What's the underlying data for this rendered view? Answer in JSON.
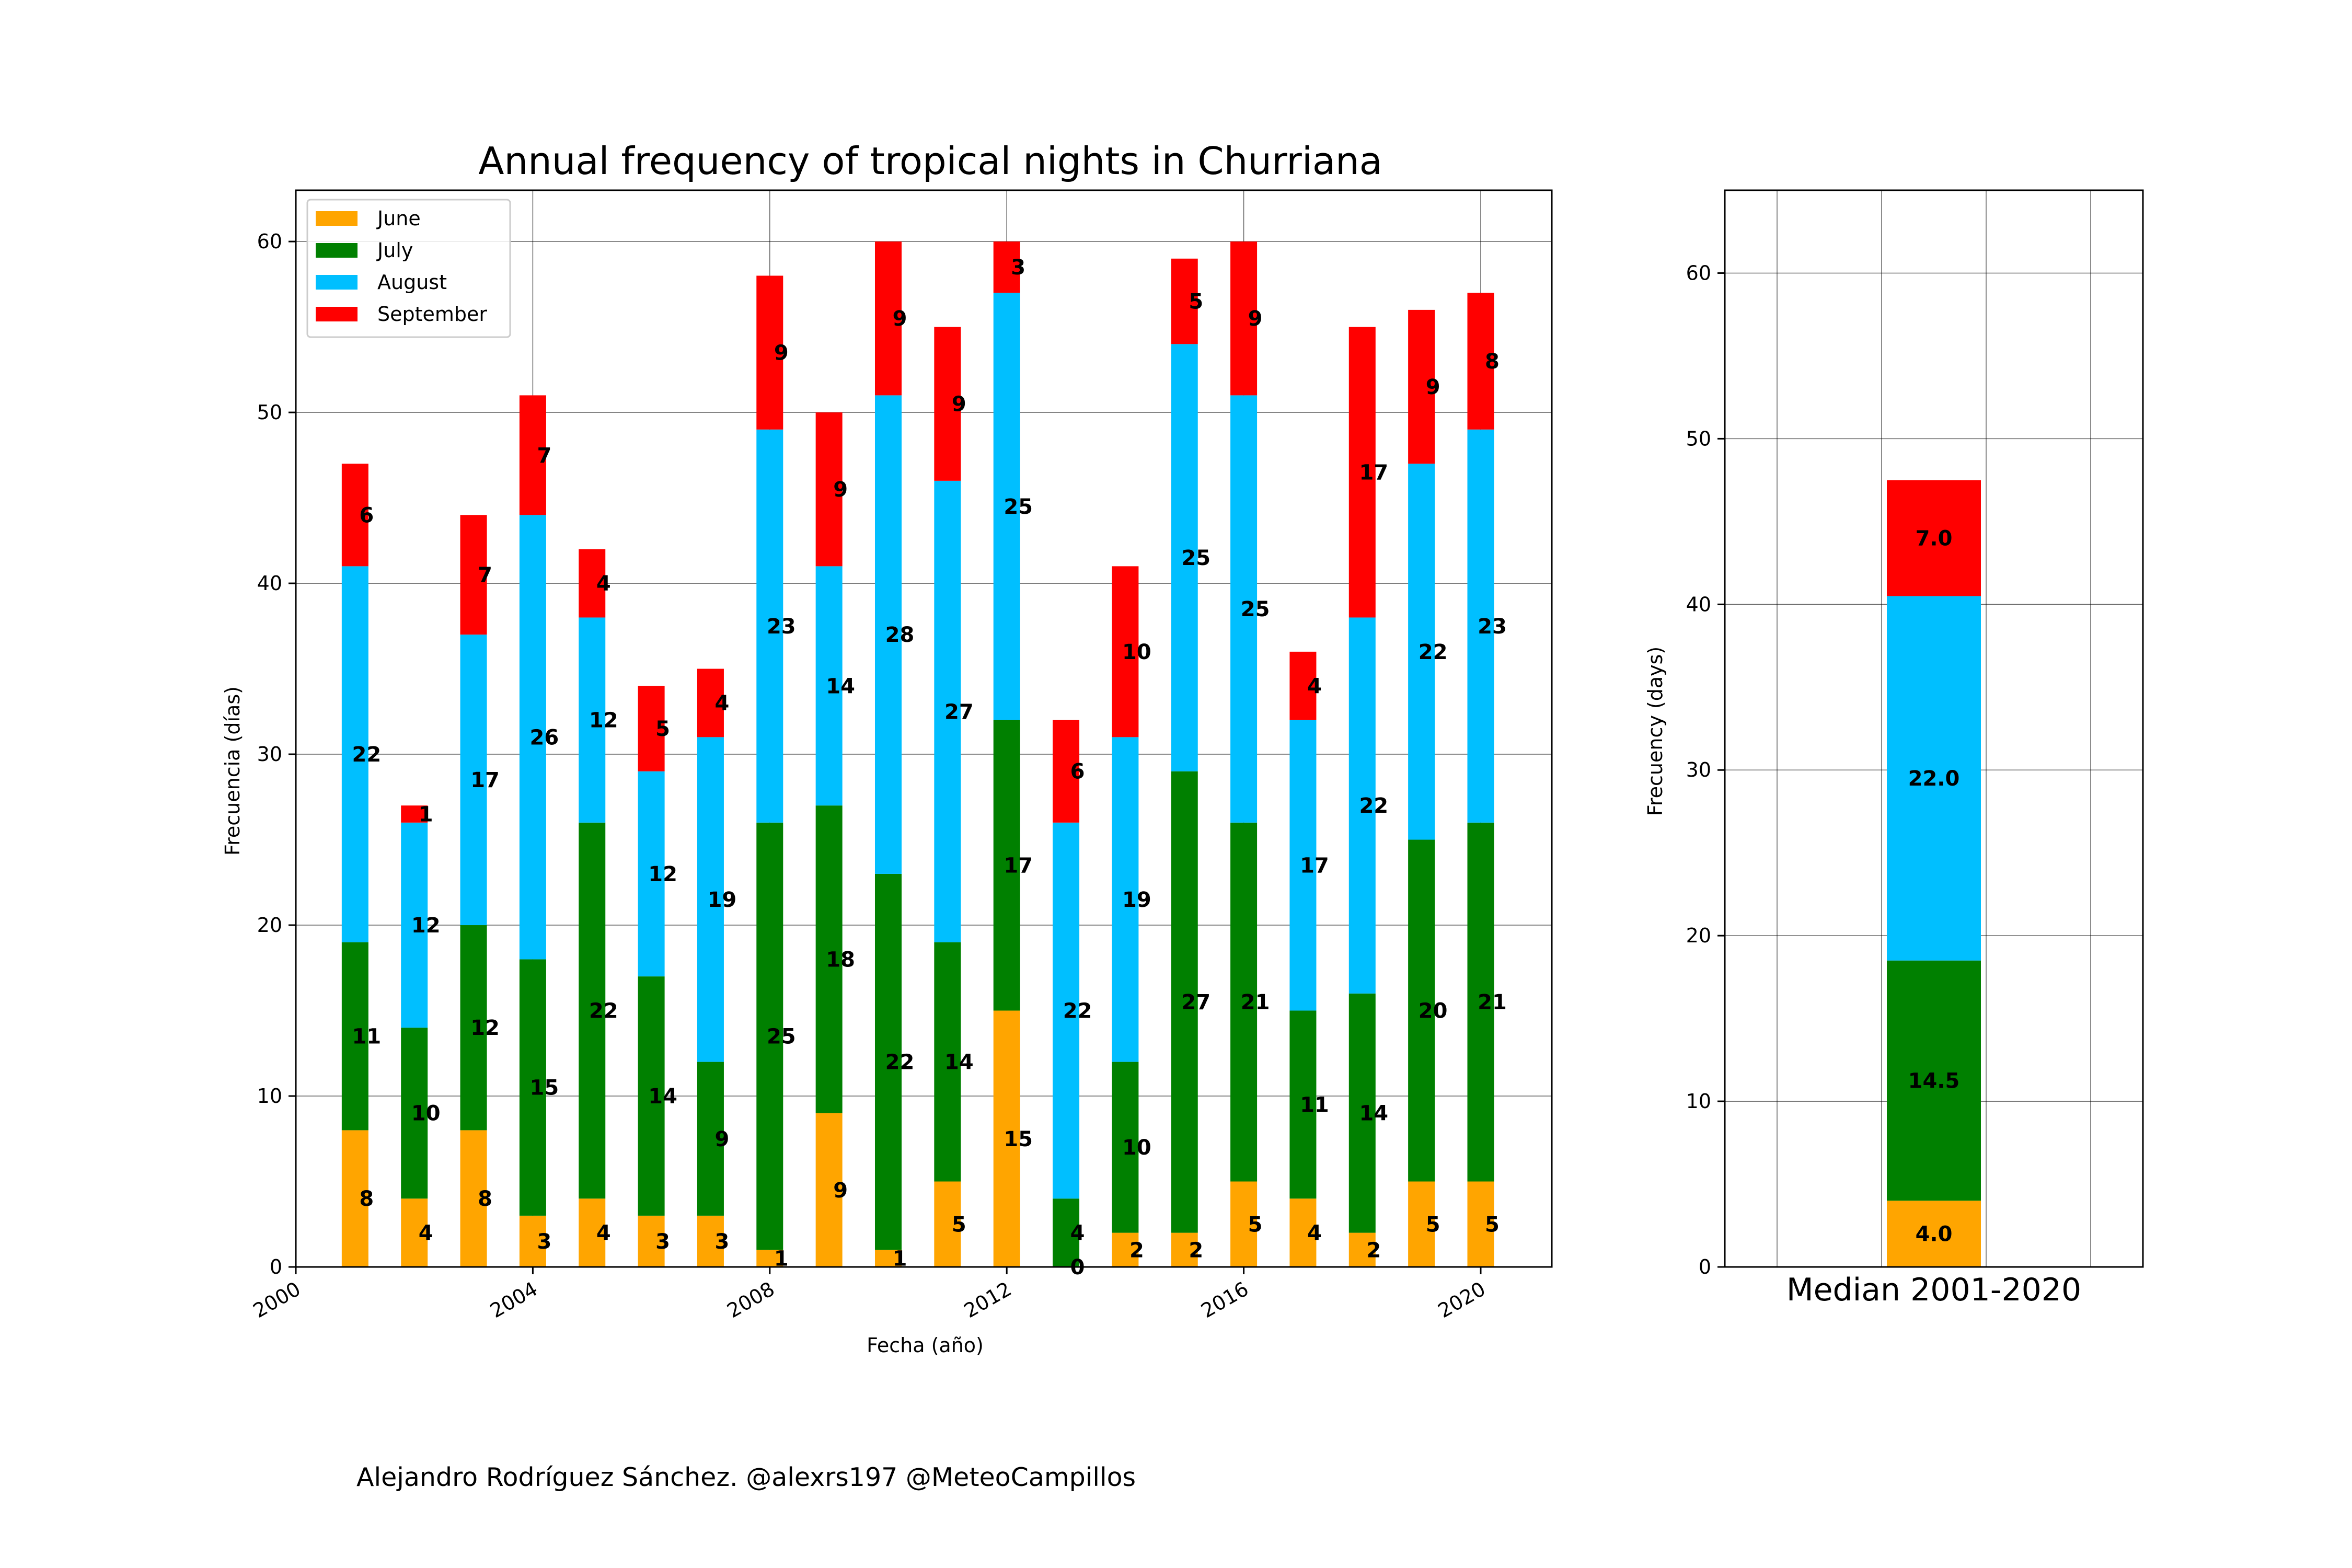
{
  "chart_data": [
    {
      "type": "bar",
      "stacked": true,
      "title": "Annual frequency of tropical nights in Churriana",
      "xlabel": "Fecha (año)",
      "ylabel": "Frecuencia (días)",
      "xlim": [
        2000,
        2021.2
      ],
      "ylim": [
        0,
        63
      ],
      "xticks": [
        2000,
        2004,
        2008,
        2012,
        2016,
        2020
      ],
      "yticks": [
        0,
        10,
        20,
        30,
        40,
        50,
        60
      ],
      "grid": true,
      "legend_position": "top-left",
      "x": [
        2001,
        2002,
        2003,
        2004,
        2005,
        2006,
        2007,
        2008,
        2009,
        2010,
        2011,
        2012,
        2013,
        2014,
        2015,
        2016,
        2017,
        2018,
        2019,
        2020
      ],
      "series": [
        {
          "name": "June",
          "color": "#ffa500",
          "values": [
            8,
            4,
            8,
            3,
            4,
            3,
            3,
            1,
            9,
            1,
            5,
            15,
            0,
            2,
            2,
            5,
            4,
            2,
            5,
            5
          ]
        },
        {
          "name": "July",
          "color": "#008000",
          "values": [
            11,
            10,
            12,
            15,
            22,
            14,
            9,
            25,
            18,
            22,
            14,
            17,
            4,
            10,
            27,
            21,
            11,
            14,
            20,
            21
          ]
        },
        {
          "name": "August",
          "color": "#00bfff",
          "values": [
            22,
            12,
            17,
            26,
            12,
            12,
            19,
            23,
            14,
            28,
            27,
            25,
            22,
            19,
            25,
            25,
            17,
            22,
            22,
            23
          ]
        },
        {
          "name": "September",
          "color": "#ff0000",
          "values": [
            6,
            1,
            7,
            7,
            4,
            5,
            4,
            9,
            9,
            9,
            9,
            3,
            6,
            10,
            5,
            9,
            4,
            17,
            9,
            8
          ]
        }
      ]
    },
    {
      "type": "bar",
      "stacked": true,
      "categories": [
        "Median 2001-2020"
      ],
      "ylabel": "Frecuency (days)",
      "ylim": [
        0,
        65
      ],
      "yticks": [
        0,
        10,
        20,
        30,
        40,
        50,
        60
      ],
      "grid": true,
      "series": [
        {
          "name": "June",
          "color": "#ffa500",
          "values": [
            4.0
          ]
        },
        {
          "name": "July",
          "color": "#008000",
          "values": [
            14.5
          ]
        },
        {
          "name": "August",
          "color": "#00bfff",
          "values": [
            22.0
          ]
        },
        {
          "name": "September",
          "color": "#ff0000",
          "values": [
            7.0
          ]
        }
      ]
    }
  ],
  "credit": "Alejandro Rodríguez Sánchez. @alexrs197 @MeteoCampillos"
}
